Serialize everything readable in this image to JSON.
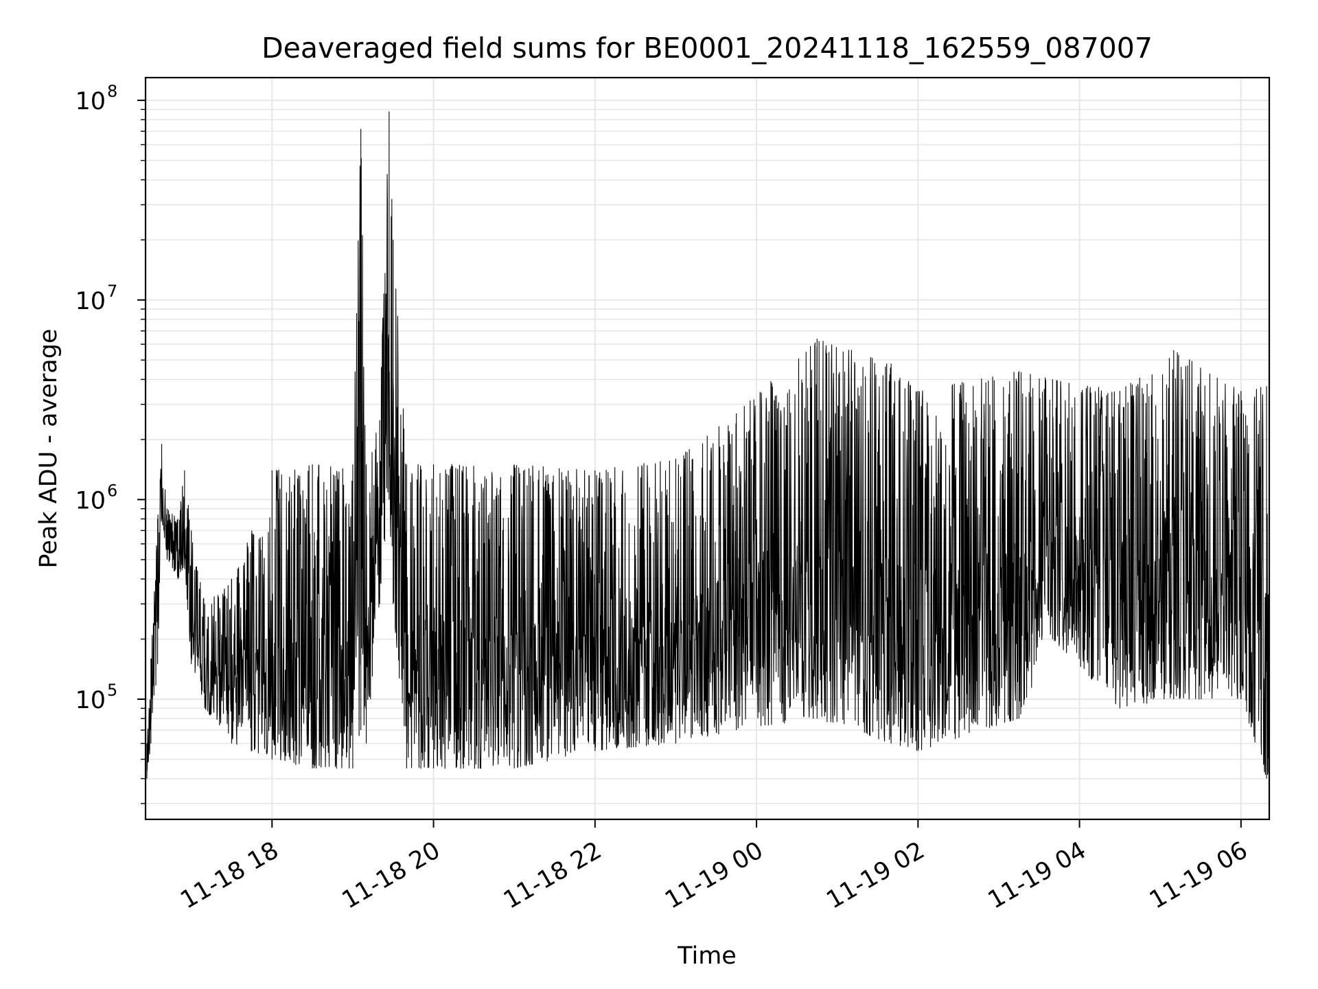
{
  "chart_data": {
    "type": "line",
    "title": "Deaveraged field sums for BE0001_20241118_162559_087007",
    "xlabel": "Time",
    "ylabel": "Peak ADU - average",
    "yscale": "log",
    "ylim": [
      25000,
      130000000
    ],
    "xlim": [
      "2024-11-18 16:26",
      "2024-11-19 06:21"
    ],
    "grid": true,
    "line_color": "#000000",
    "x_ticks": [
      {
        "value": "2024-11-18 18:00",
        "label": "11-18 18"
      },
      {
        "value": "2024-11-18 20:00",
        "label": "11-18 20"
      },
      {
        "value": "2024-11-18 22:00",
        "label": "11-18 22"
      },
      {
        "value": "2024-11-19 00:00",
        "label": "11-19 00"
      },
      {
        "value": "2024-11-19 02:00",
        "label": "11-19 02"
      },
      {
        "value": "2024-11-19 04:00",
        "label": "11-19 04"
      },
      {
        "value": "2024-11-19 06:00",
        "label": "11-19 06"
      }
    ],
    "y_ticks": [
      {
        "value": 100000,
        "base": "10",
        "exp": "5"
      },
      {
        "value": 1000000,
        "base": "10",
        "exp": "6"
      },
      {
        "value": 10000000,
        "base": "10",
        "exp": "7"
      },
      {
        "value": 100000000,
        "base": "10",
        "exp": "8"
      }
    ],
    "series": [
      {
        "points": [
          {
            "x": "2024-11-18 16:27",
            "low": 40000,
            "high": 60000
          },
          {
            "x": "2024-11-18 16:30",
            "low": 60000,
            "high": 160000
          },
          {
            "x": "2024-11-18 16:35",
            "low": 150000,
            "high": 800000
          },
          {
            "x": "2024-11-18 16:38",
            "low": 800000,
            "high": 1900000
          },
          {
            "x": "2024-11-18 16:42",
            "low": 500000,
            "high": 900000
          },
          {
            "x": "2024-11-18 16:50",
            "low": 400000,
            "high": 800000
          },
          {
            "x": "2024-11-18 16:55",
            "low": 450000,
            "high": 1400000
          },
          {
            "x": "2024-11-18 17:00",
            "low": 150000,
            "high": 700000
          },
          {
            "x": "2024-11-18 17:10",
            "low": 90000,
            "high": 300000
          },
          {
            "x": "2024-11-18 17:30",
            "low": 60000,
            "high": 400000
          },
          {
            "x": "2024-11-18 17:45",
            "low": 55000,
            "high": 700000
          },
          {
            "x": "2024-11-18 18:00",
            "low": 50000,
            "high": 1400000
          },
          {
            "x": "2024-11-18 18:30",
            "low": 45000,
            "high": 1500000
          },
          {
            "x": "2024-11-18 19:00",
            "low": 45000,
            "high": 1500000
          },
          {
            "x": "2024-11-18 19:06",
            "low": 70000,
            "high": 72000000
          },
          {
            "x": "2024-11-18 19:10",
            "low": 60000,
            "high": 1500000
          },
          {
            "x": "2024-11-18 19:20",
            "low": 300000,
            "high": 2500000
          },
          {
            "x": "2024-11-18 19:27",
            "low": 1000000,
            "high": 88000000
          },
          {
            "x": "2024-11-18 19:30",
            "low": 300000,
            "high": 20000000
          },
          {
            "x": "2024-11-18 19:40",
            "low": 45000,
            "high": 1500000
          },
          {
            "x": "2024-11-18 20:00",
            "low": 45000,
            "high": 1500000
          },
          {
            "x": "2024-11-18 21:00",
            "low": 45000,
            "high": 1500000
          },
          {
            "x": "2024-11-18 22:00",
            "low": 55000,
            "high": 1400000
          },
          {
            "x": "2024-11-18 23:00",
            "low": 60000,
            "high": 1600000
          },
          {
            "x": "2024-11-18 23:45",
            "low": 70000,
            "high": 2700000
          },
          {
            "x": "2024-11-19 00:45",
            "low": 80000,
            "high": 6400000
          },
          {
            "x": "2024-11-19 01:40",
            "low": 60000,
            "high": 4800000
          },
          {
            "x": "2024-11-19 02:00",
            "low": 55000,
            "high": 3500000
          },
          {
            "x": "2024-11-19 03:15",
            "low": 80000,
            "high": 4400000
          },
          {
            "x": "2024-11-19 03:40",
            "low": 200000,
            "high": 4000000
          },
          {
            "x": "2024-11-19 04:30",
            "low": 90000,
            "high": 3500000
          },
          {
            "x": "2024-11-19 05:10",
            "low": 100000,
            "high": 5600000
          },
          {
            "x": "2024-11-19 06:00",
            "low": 100000,
            "high": 3500000
          },
          {
            "x": "2024-11-19 06:19",
            "low": 40000,
            "high": 3700000
          },
          {
            "x": "2024-11-19 06:21",
            "low": 40000,
            "high": 180000
          }
        ]
      }
    ]
  }
}
